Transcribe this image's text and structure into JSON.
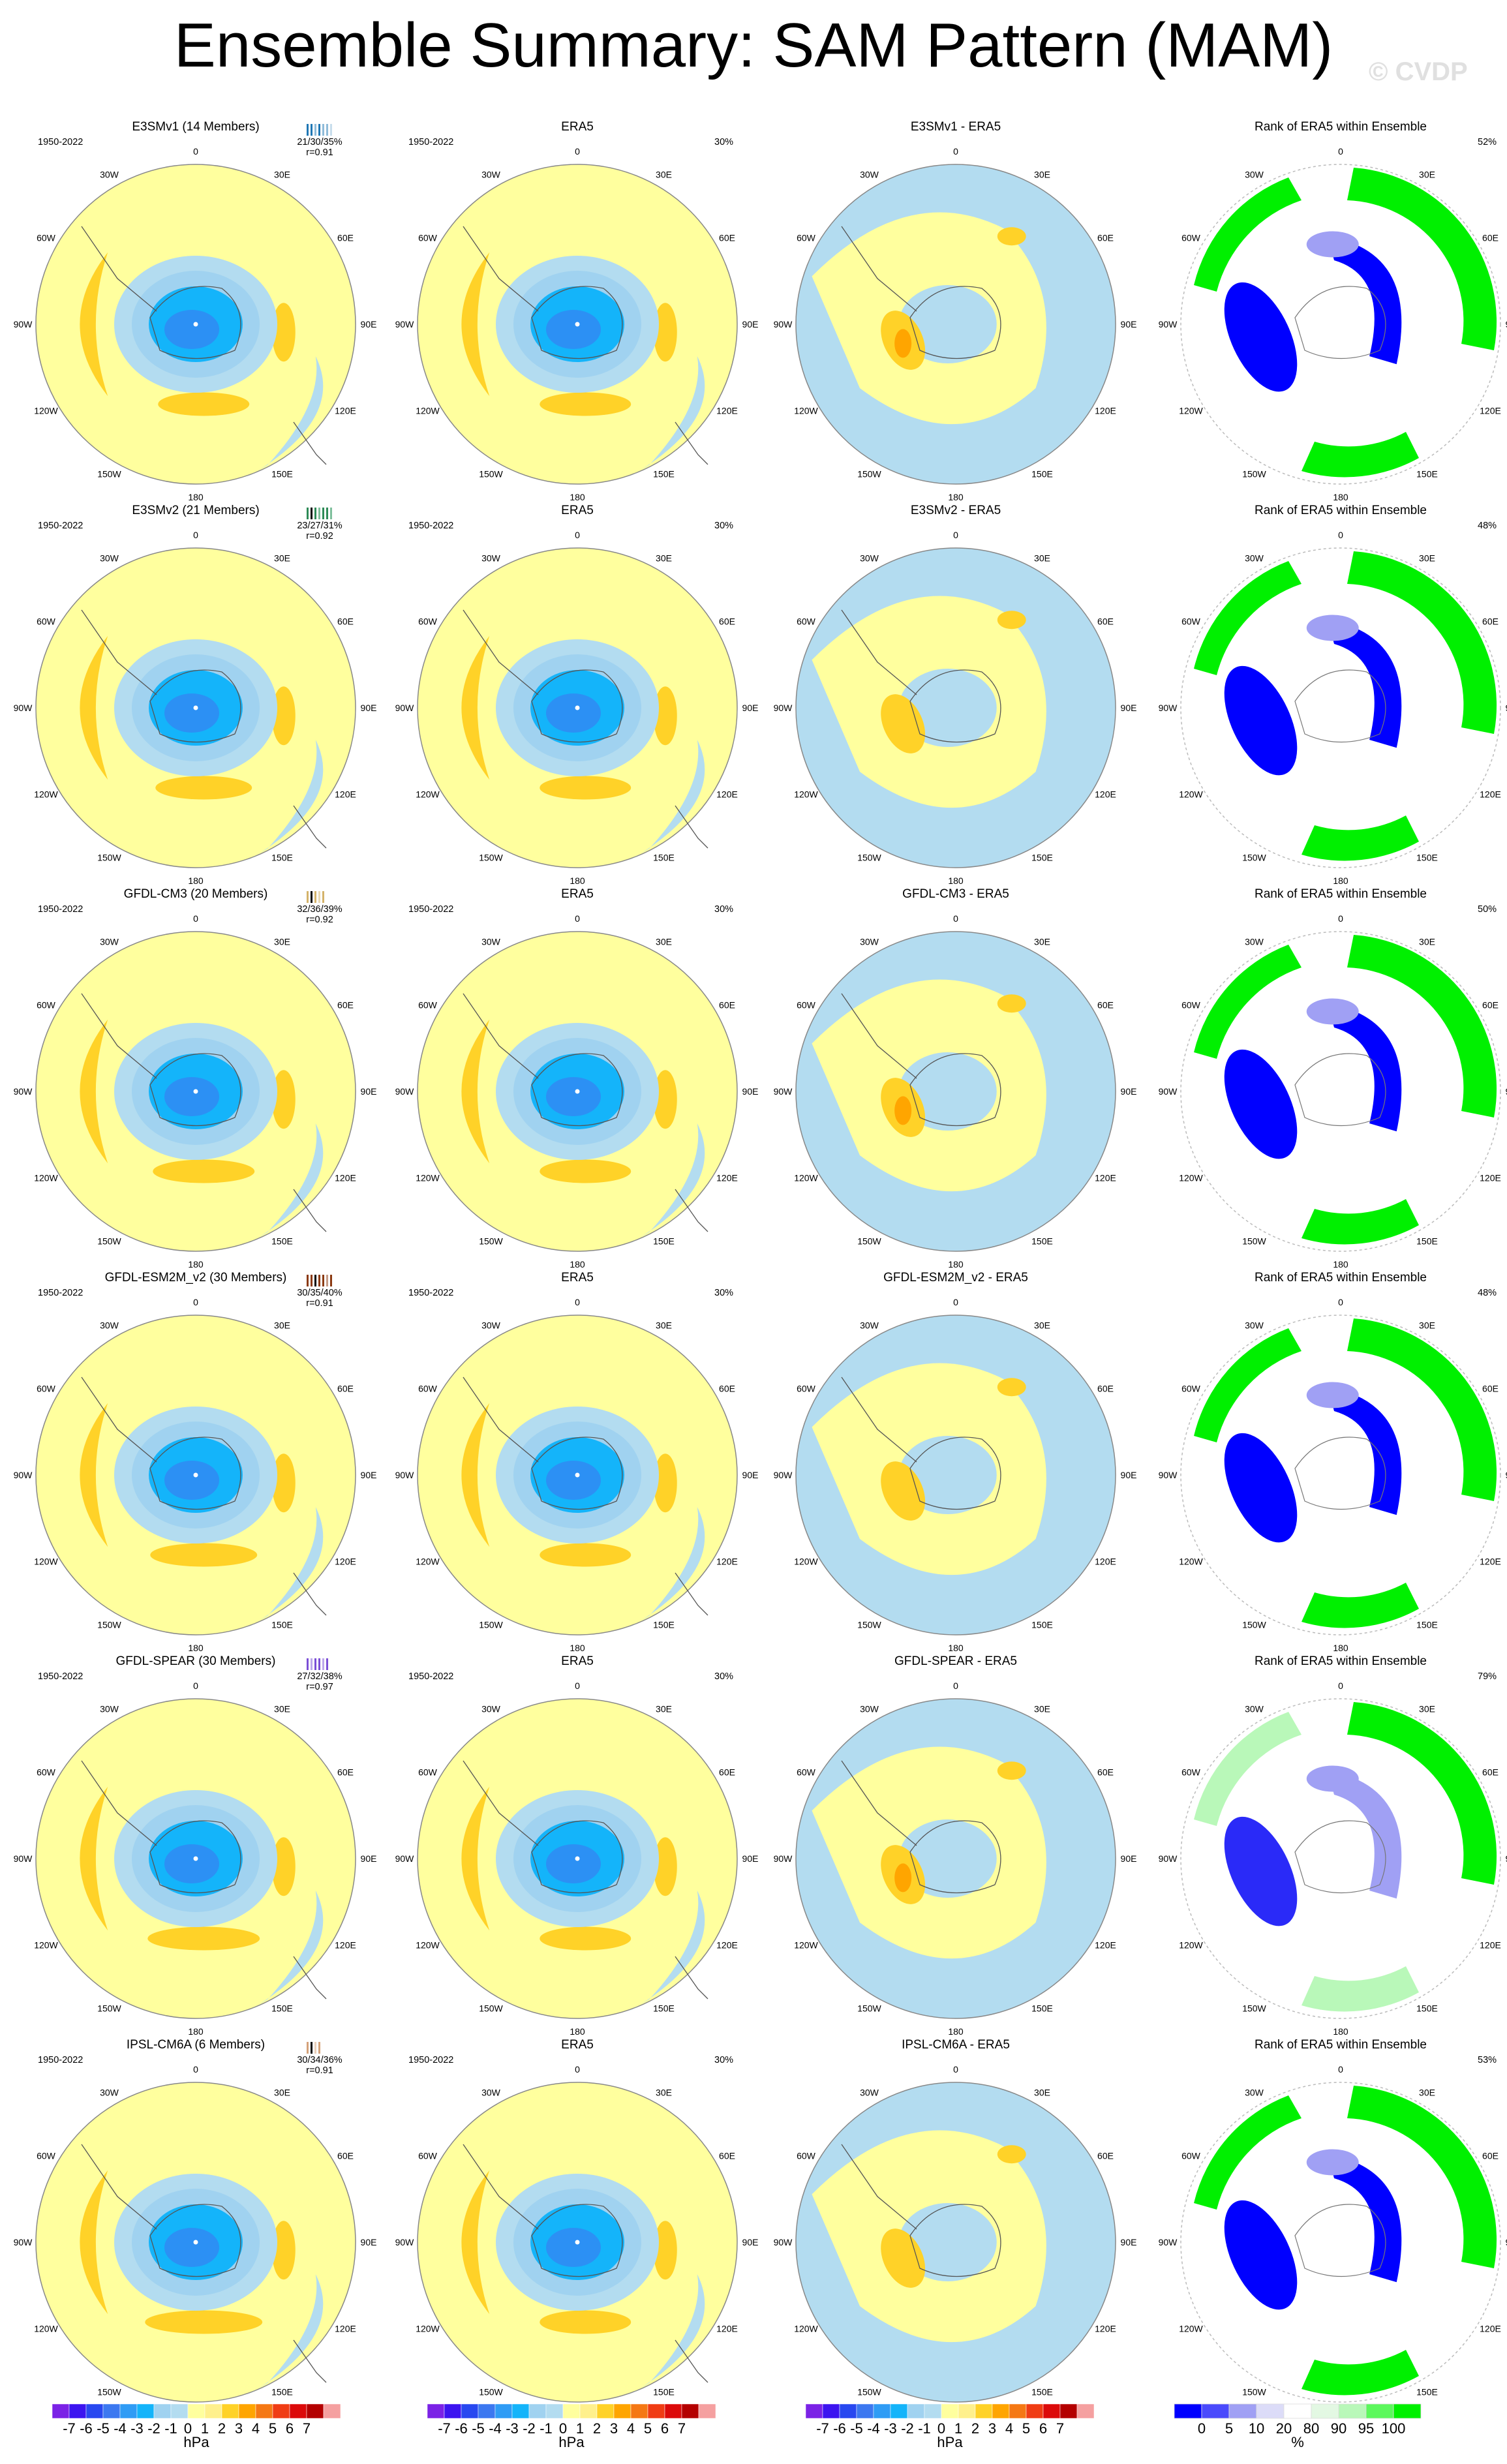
{
  "title": "Ensemble Summary: SAM Pattern (MAM)",
  "copyright": "© CVDP",
  "period": "1950-2022",
  "lon_labels": [
    "0",
    "30E",
    "60E",
    "90E",
    "120E",
    "150E",
    "180",
    "150W",
    "120W",
    "90W",
    "60W",
    "30W"
  ],
  "column_titles": [
    "ERA5",
    "Rank of ERA5 within Ensemble"
  ],
  "colors": {
    "diff_fill": [
      "#7b22e6",
      "#3c14f0",
      "#2848f0",
      "#3c78f0",
      "#2f9cf5",
      "#14b4fa",
      "#a0d2f0",
      "#b3dcf0",
      "#ffff9e",
      "#fff08c",
      "#ffd228",
      "#ffa500",
      "#f57814",
      "#f03c14",
      "#dc0a0a",
      "#b40000",
      "#f5a0a0"
    ],
    "rank_fill": [
      "#0000ff",
      "#4a4afc",
      "#a0a0f4",
      "#dcdcf8",
      "#ffffff",
      "#e3f8e3",
      "#b9f8b9",
      "#5cf85c",
      "#00f000"
    ]
  },
  "chart_data": [
    {
      "type": "heatmap",
      "name": "SAM pattern ensemble summary",
      "units": "hPa",
      "rows": [
        {
          "model": "E3SMv1",
          "members_label": "E3SMv1 (14 Members)",
          "members": 14,
          "stats": "21/30/35%",
          "r": "r=0.91",
          "diff_title": "E3SMv1 - ERA5",
          "rank_pct": "52%",
          "title_color": "#1f77b4",
          "bars": [
            "#1f77b4",
            "#1f77b4",
            "#8fbbd9",
            "#1f77b4",
            "#8fbbd9",
            "#8fbbd9",
            "#c7ddec"
          ]
        },
        {
          "model": "E3SMv2",
          "members_label": "E3SMv2 (21 Members)",
          "members": 21,
          "stats": "23/27/31%",
          "r": "r=0.92",
          "diff_title": "E3SMv2 - ERA5",
          "rank_pct": "48%",
          "title_color": "#2e8b57",
          "bars": [
            "#2e8b57",
            "#000000",
            "#2e8b57",
            "#7fbf9c",
            "#2e8b57",
            "#2e8b57",
            "#7fbf9c"
          ]
        },
        {
          "model": "GFDL-CM3",
          "members_label": "GFDL-CM3 (20 Members)",
          "members": 20,
          "stats": "32/36/39%",
          "r": "r=0.92",
          "diff_title": "GFDL-CM3 - ERA5",
          "rank_pct": "50%",
          "title_color": "#d4b36a",
          "bars": [
            "#d4b36a",
            "#000000",
            "#d4b36a",
            "#e9d9b4",
            "#d4b36a"
          ]
        },
        {
          "model": "GFDL-ESM2M_v2",
          "members_label": "GFDL-ESM2M_v2 (30 Members)",
          "members": 30,
          "stats": "30/35/40%",
          "r": "r=0.91",
          "diff_title": "GFDL-ESM2M_v2 - ERA5",
          "rank_pct": "48%",
          "title_color": "#8b3a12",
          "bars": [
            "#8b3a12",
            "#8b3a12",
            "#000000",
            "#8b3a12",
            "#8b3a12",
            "#c59c88",
            "#8b3a12"
          ]
        },
        {
          "model": "GFDL-SPEAR",
          "members_label": "GFDL-SPEAR (30 Members)",
          "members": 30,
          "stats": "27/32/38%",
          "r": "r=0.97",
          "diff_title": "GFDL-SPEAR - ERA5",
          "rank_pct": "79%",
          "title_color": "#7b4fd6",
          "bars": [
            "#7b4fd6",
            "#bda7eb",
            "#7b4fd6",
            "#7b4fd6",
            "#bda7eb",
            "#7b4fd6"
          ]
        },
        {
          "model": "IPSL-CM6A",
          "members_label": "IPSL-CM6A (6 Members)",
          "members": 6,
          "stats": "30/34/36%",
          "r": "r=0.91",
          "diff_title": "IPSL-CM6A - ERA5",
          "rank_pct": "53%",
          "title_color": "#d4a27a",
          "bars": [
            "#d4a27a",
            "#000000",
            "#e9d0bc",
            "#d4a27a"
          ]
        }
      ],
      "era5_rank_pct_top": "30%",
      "pattern_colorbar": {
        "ticks": [
          "-7",
          "-6",
          "-5",
          "-4",
          "-3",
          "-2",
          "-1",
          "0",
          "1",
          "2",
          "3",
          "4",
          "5",
          "6",
          "7"
        ],
        "label": "hPa"
      },
      "rank_colorbar": {
        "ticks": [
          "0",
          "5",
          "10",
          "20",
          "80",
          "90",
          "95",
          "100"
        ],
        "label": "%"
      }
    }
  ]
}
